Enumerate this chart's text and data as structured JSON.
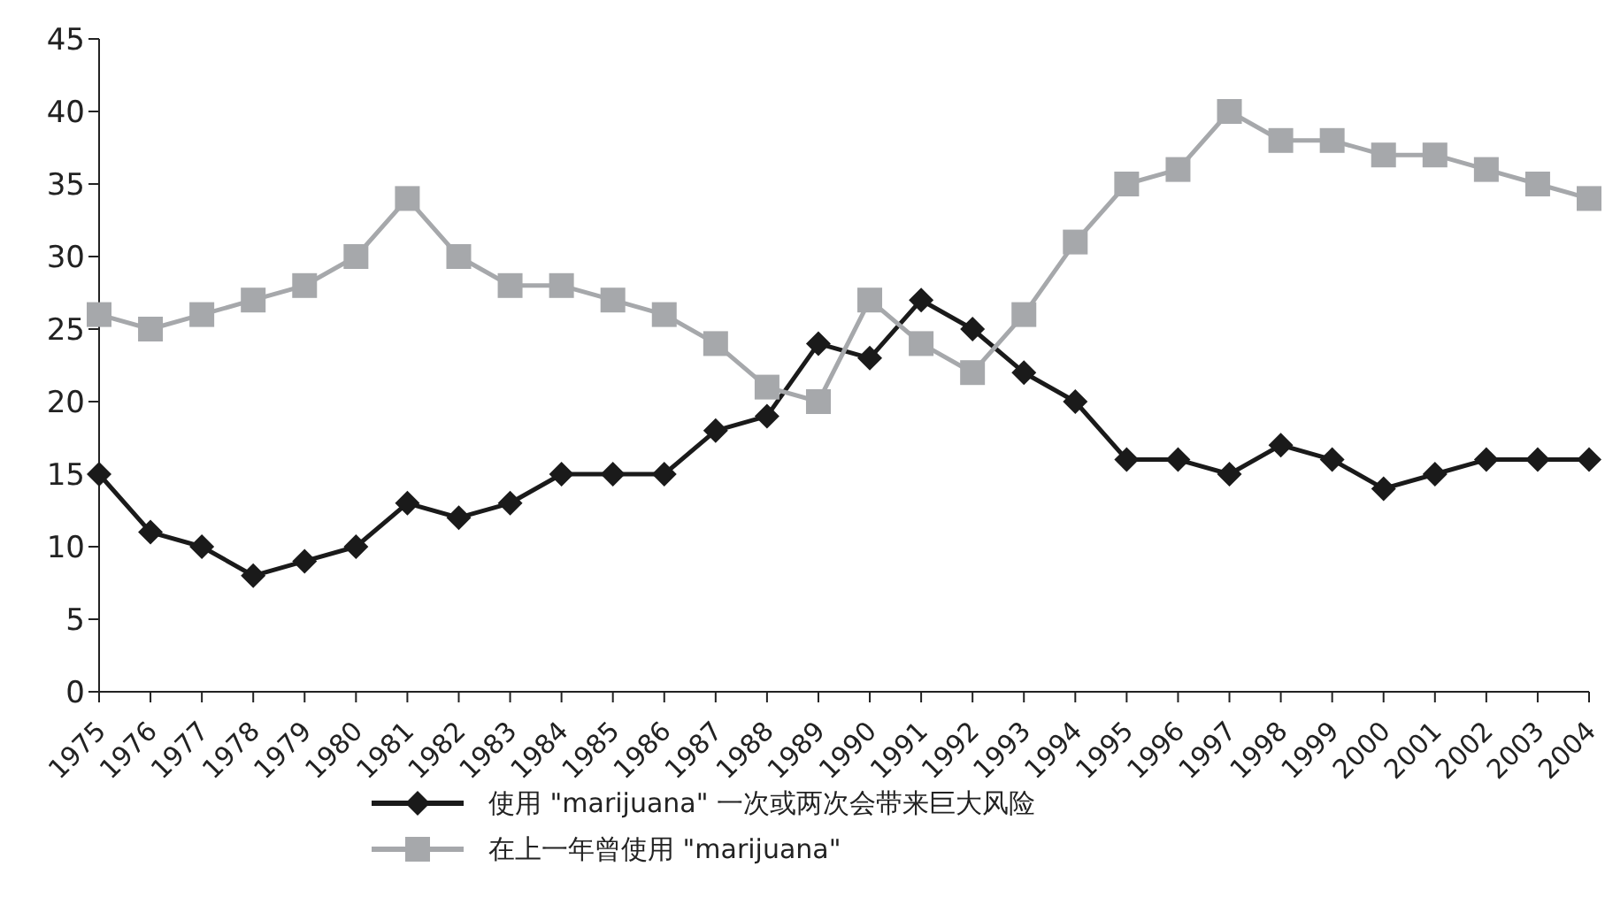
{
  "chart_data": {
    "type": "line",
    "categories": [
      "1975",
      "1976",
      "1977",
      "1978",
      "1979",
      "1980",
      "1981",
      "1982",
      "1983",
      "1984",
      "1985",
      "1986",
      "1987",
      "1988",
      "1989",
      "1990",
      "1991",
      "1992",
      "1993",
      "1994",
      "1995",
      "1996",
      "1997",
      "1998",
      "1999",
      "2000",
      "2001",
      "2002",
      "2003",
      "2004"
    ],
    "series": [
      {
        "name": "使用 \"marijuana\" 一次或两次会带来巨大风险",
        "color": "#1a1a1a",
        "marker": "diamond",
        "values": [
          15,
          11,
          10,
          8,
          9,
          10,
          13,
          12,
          13,
          15,
          15,
          15,
          18,
          19,
          24,
          23,
          27,
          25,
          22,
          20,
          16,
          16,
          15,
          17,
          16,
          14,
          15,
          16,
          16,
          16
        ]
      },
      {
        "name": "在上一年曾使用 \"marijuana\"",
        "color": "#a6a8ab",
        "marker": "square",
        "values": [
          26,
          25,
          26,
          27,
          28,
          30,
          34,
          30,
          28,
          28,
          27,
          26,
          24,
          21,
          20,
          27,
          24,
          22,
          26,
          31,
          35,
          36,
          40,
          38,
          38,
          37,
          37,
          36,
          35,
          34
        ]
      }
    ],
    "ylim": [
      0,
      45
    ],
    "yticks": [
      0,
      5,
      10,
      15,
      20,
      25,
      30,
      35,
      40,
      45
    ],
    "grid": false,
    "legend": "bottom",
    "line_style": "solid"
  }
}
